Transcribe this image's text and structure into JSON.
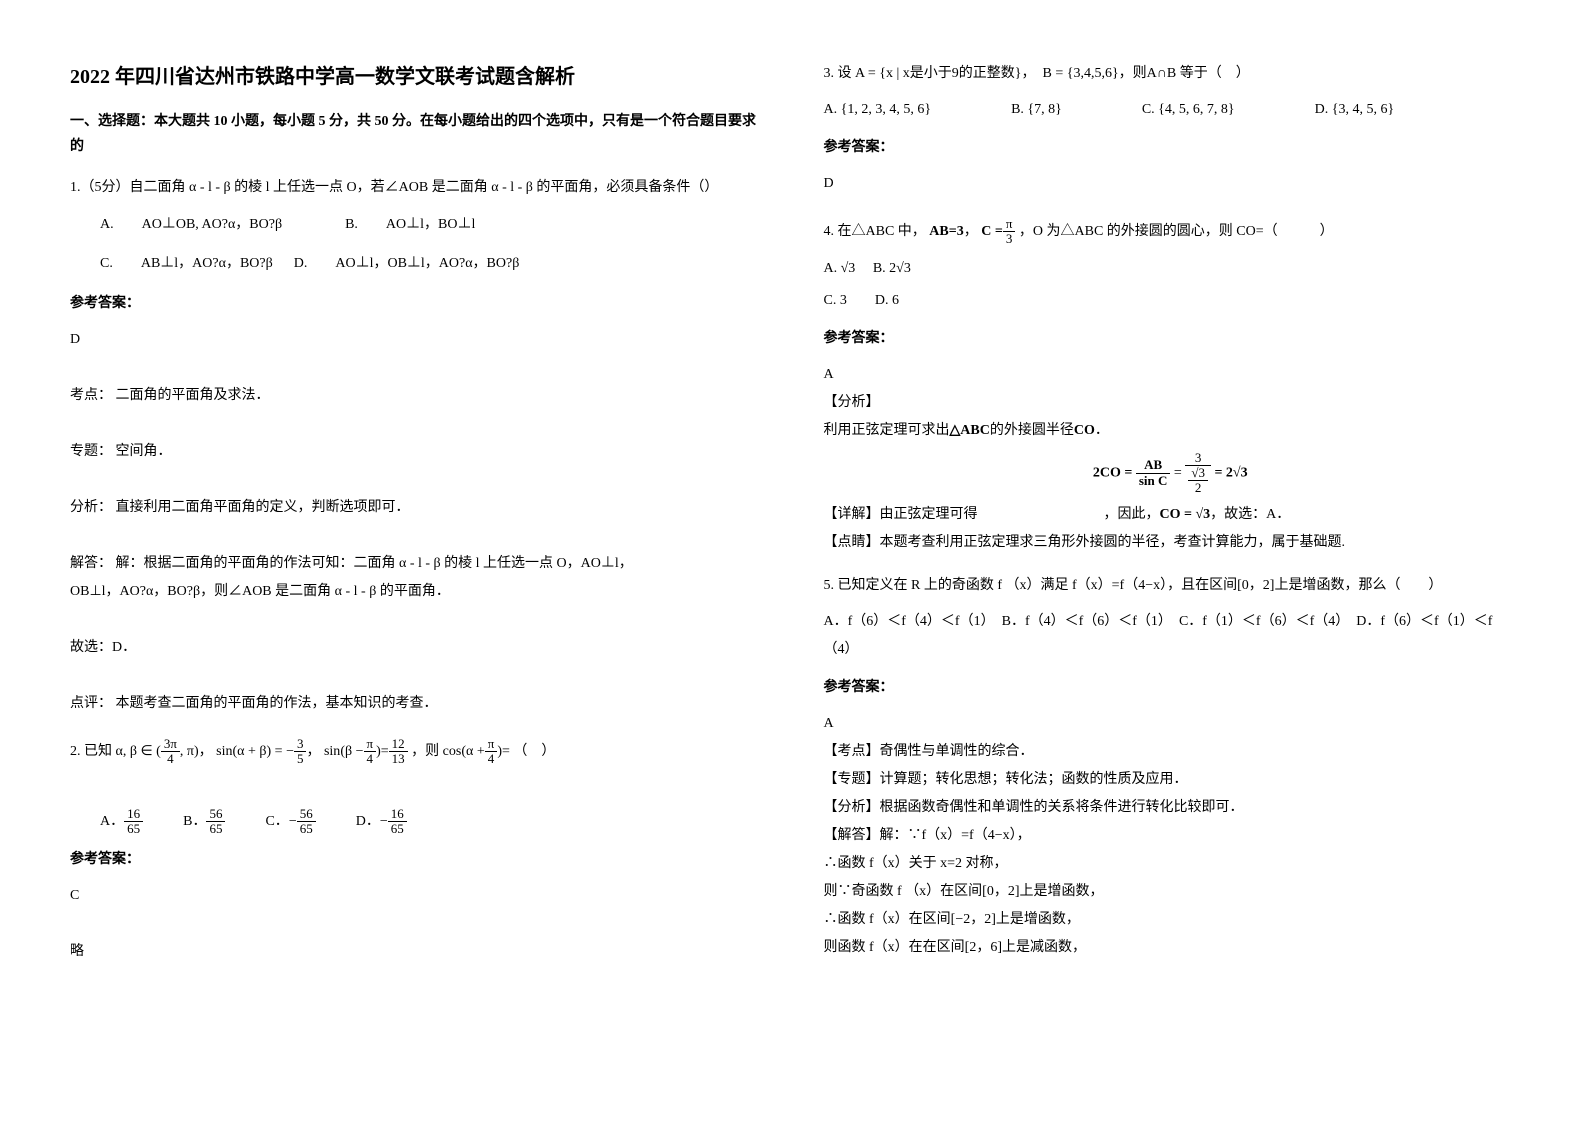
{
  "title": "2022 年四川省达州市铁路中学高一数学文联考试题含解析",
  "section_head": "一、选择题：本大题共 10 小题，每小题 5 分，共 50 分。在每小题给出的四个选项中，只有是一个符合题目要求的",
  "q1": {
    "text": "1.（5分）自二面角 α - l - β 的棱 l 上任选一点 O，若∠AOB 是二面角 α - l - β 的平面角，必须具备条件（）",
    "A": "A.　　AO⊥OB, AO?α，BO?β",
    "B": "B.　　AO⊥l，BO⊥l",
    "C": "C.　　AB⊥l，AO?α，BO?β",
    "D": "D.　　AO⊥l，OB⊥l，AO?α，BO?β",
    "answer_label": "参考答案：",
    "answer": "D",
    "analysis_l1": "考点：  二面角的平面角及求法．",
    "analysis_l2": "专题：  空间角．",
    "analysis_l3": "分析：  直接利用二面角平面角的定义，判断选项即可．",
    "analysis_l4": "解答：  解：根据二面角的平面角的作法可知：二面角 α - l - β 的棱 l 上任选一点 O，AO⊥l，",
    "analysis_l5": "OB⊥l，AO?α，BO?β，则∠AOB 是二面角 α - l - β 的平面角．",
    "analysis_l6": "故选：D．",
    "analysis_l7": "点评：  本题考查二面角的平面角的作法，基本知识的考查．"
  },
  "q2": {
    "prefix": "2. 已知",
    "cond1a": "α, β ∈",
    "frac1_num": "3π",
    "frac1_den": "4",
    "cond1b": ", π",
    "cond2a": "sin(α + β) = −",
    "frac2_num": "3",
    "frac2_den": "5",
    "cond3a": "sin",
    "cond3b": "β −",
    "frac3a_num": "π",
    "frac3a_den": "4",
    "cond3c": "=",
    "frac3b_num": "12",
    "frac3b_den": "13",
    "cond4a": "，则",
    "cond4b": "cos",
    "cond4c": "α +",
    "frac4_num": "π",
    "frac4_den": "4",
    "cond4d": "=",
    "tail": "（　）",
    "A": "A．",
    "A_num": "16",
    "A_den": "65",
    "B": "B．",
    "B_num": "56",
    "B_den": "65",
    "C": "C．",
    "C_pre": "−",
    "C_num": "56",
    "C_den": "65",
    "D": "D．",
    "D_pre": "−",
    "D_num": "16",
    "D_den": "65",
    "answer_label": "参考答案：",
    "answer": "C",
    "skip": "略"
  },
  "q3": {
    "prefix": "3. 设",
    "setA": "A = {x | x是小于9的正整数}",
    "setB": "B = {3,4,5,6}",
    "mid": "，则",
    "expr": "A∩B",
    "tail": " 等于（　）",
    "A": "A. {1, 2, 3, 4, 5, 6}",
    "B": "B. {7, 8}",
    "C": "C. {4, 5, 6, 7, 8}",
    "D": "D. {3, 4, 5, 6}",
    "answer_label": "参考答案：",
    "answer": "D"
  },
  "q4": {
    "prefix": "4. 在△ABC 中，",
    "ab": "AB=3",
    "c_lhs": "C =",
    "c_num": "π",
    "c_den": "3",
    "mid": "，O 为△ABC 的外接圆的圆心，则 CO=（　　　）",
    "A": "A.",
    "A_val": "√3",
    "B": "B.",
    "B_val": "2√3",
    "C": "C. 3",
    "D": "D. 6",
    "answer_label": "参考答案：",
    "answer": "A",
    "ana1": "【分析】",
    "ana2_a": "利用正弦定理可求出",
    "ana2_tri": "△ABC",
    "ana2_b": "的外接圆半径",
    "ana2_co": "CO",
    "ana2_c": "．",
    "eq_lhs": "2CO =",
    "eq_f1_num": "AB",
    "eq_f1_den": "sin C",
    "eq_eq": "=",
    "eq_f2_num": "3",
    "eq_f2_den_num": "√3",
    "eq_f2_den_den": "2",
    "eq_tail": "= 2√3",
    "ana3a": "【详解】由正弦定理可得",
    "ana3b": "，因此，",
    "ana3co": "CO = √3",
    "ana3c": "，故选：A．",
    "ana4": "【点睛】本题考查利用正弦定理求三角形外接圆的半径，考查计算能力，属于基础题."
  },
  "q5": {
    "text": "5. 已知定义在 R 上的奇函数 f （x）满足 f（x）=f（4−x），且在区间[0，2]上是增函数，那么（　　）",
    "A": "A．f（6）＜f（4）＜f（1）",
    "B": "B．f（4）＜f（6）＜f（1）",
    "C": "C．f（1）＜f（6）＜f（4）",
    "D": "D．f（6）＜f（1）＜f（4）",
    "answer_label": "参考答案：",
    "answer": "A",
    "l1": "【考点】奇偶性与单调性的综合．",
    "l2": "【专题】计算题；转化思想；转化法；函数的性质及应用．",
    "l3": "【分析】根据函数奇偶性和单调性的关系将条件进行转化比较即可．",
    "l4": "【解答】解：∵f（x）=f（4−x），",
    "l5": "∴函数 f（x）关于 x=2 对称，",
    "l6": "则∵奇函数 f （x）在区间[0，2]上是增函数，",
    "l7": "∴函数 f（x）在区间[−2，2]上是增函数，",
    "l8": "则函数 f（x）在在区间[2，6]上是减函数，"
  }
}
